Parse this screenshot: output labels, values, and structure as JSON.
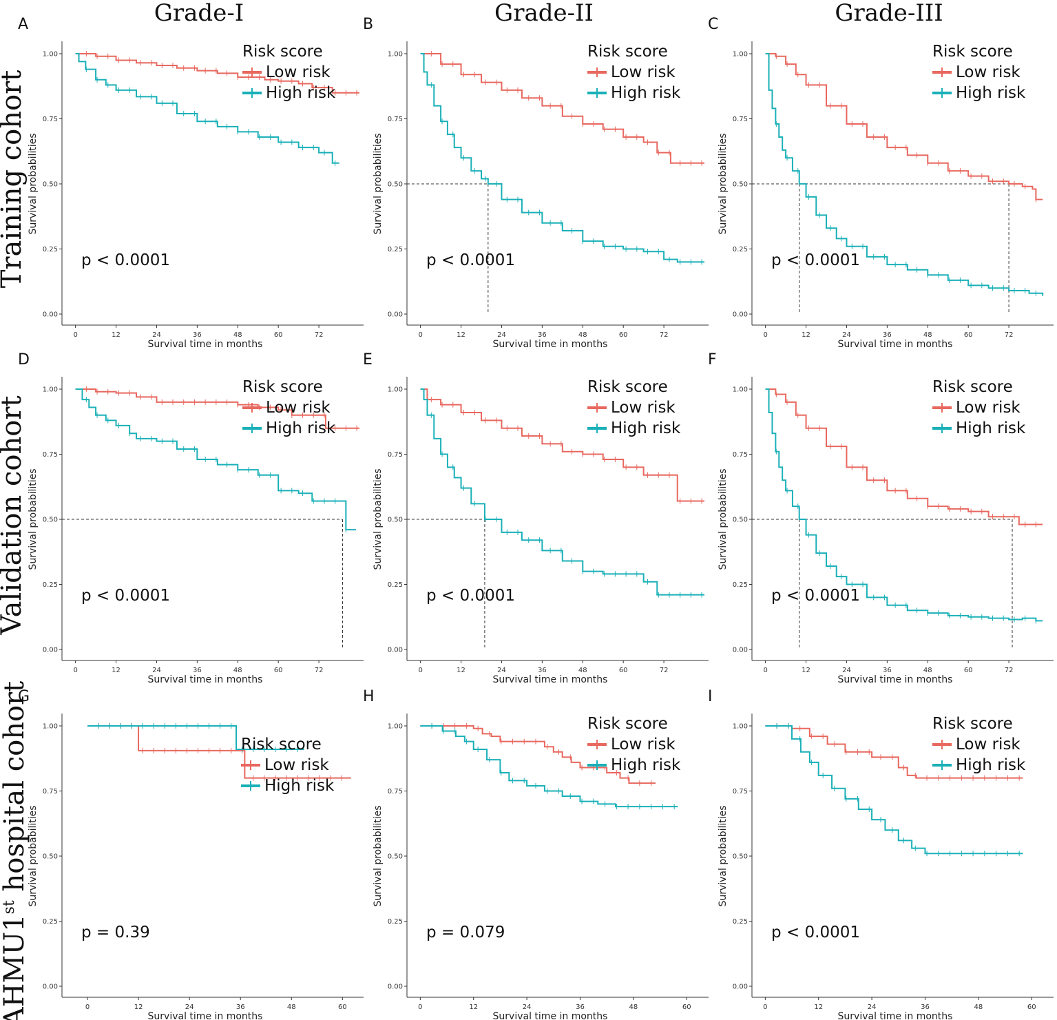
{
  "figure": {
    "column_headers": [
      "Grade-I",
      "Grade-II",
      "Grade-III"
    ],
    "row_headers": [
      {
        "text": "Training cohort"
      },
      {
        "text": "Validation cohort"
      },
      {
        "text": "AHMU1",
        "sup": "st",
        "rest": " hospital cohort"
      }
    ]
  },
  "colors": {
    "low_risk": "#e8685f",
    "high_risk": "#1ab0b8",
    "axis": "#333333",
    "median_line": "#333333"
  },
  "chart_data": [
    {
      "panel": "A",
      "type": "line",
      "subtype": "kaplan-meier",
      "xlabel": "Survival time in months",
      "ylabel": "Survival probabilities",
      "xticks": [
        0,
        12,
        24,
        36,
        48,
        60,
        72
      ],
      "xlim": [
        -4,
        84
      ],
      "yticks": [
        "0.00",
        "0.25",
        "0.50",
        "0.75",
        "1.00"
      ],
      "ylim": [
        0,
        1
      ],
      "pvalue": "p < 0.0001",
      "legend": {
        "title": "Risk score",
        "labels": [
          "Low risk",
          "High risk"
        ],
        "position": "top-right"
      },
      "median_lines": [],
      "series": [
        {
          "name": "Low risk",
          "x": [
            0,
            6,
            12,
            18,
            24,
            30,
            36,
            42,
            48,
            56,
            60,
            66,
            70,
            76,
            84
          ],
          "y": [
            1.0,
            0.99,
            0.975,
            0.965,
            0.955,
            0.945,
            0.935,
            0.925,
            0.91,
            0.9,
            0.895,
            0.885,
            0.87,
            0.85,
            0.85
          ]
        },
        {
          "name": "High risk",
          "x": [
            0,
            1,
            3,
            6,
            9,
            12,
            18,
            24,
            30,
            36,
            42,
            48,
            54,
            60,
            66,
            72,
            76,
            78
          ],
          "y": [
            1.0,
            0.97,
            0.94,
            0.9,
            0.88,
            0.86,
            0.835,
            0.81,
            0.77,
            0.74,
            0.72,
            0.7,
            0.68,
            0.66,
            0.64,
            0.62,
            0.58,
            0.58
          ]
        }
      ]
    },
    {
      "panel": "B",
      "type": "line",
      "subtype": "kaplan-meier",
      "xlabel": "Survival time in months",
      "ylabel": "Survival probabilities",
      "xticks": [
        0,
        12,
        24,
        36,
        48,
        60,
        72
      ],
      "xlim": [
        -4,
        84
      ],
      "yticks": [
        "0.00",
        "0.25",
        "0.50",
        "0.75",
        "1.00"
      ],
      "ylim": [
        0,
        1
      ],
      "pvalue": "p < 0.0001",
      "legend": {
        "title": "Risk score",
        "labels": [
          "Low risk",
          "High risk"
        ],
        "position": "top-right"
      },
      "median_lines": [
        20
      ],
      "series": [
        {
          "name": "Low risk",
          "x": [
            0,
            6,
            12,
            18,
            24,
            30,
            36,
            42,
            48,
            54,
            60,
            66,
            70,
            74,
            84
          ],
          "y": [
            1.0,
            0.96,
            0.92,
            0.89,
            0.86,
            0.83,
            0.8,
            0.76,
            0.73,
            0.71,
            0.68,
            0.66,
            0.62,
            0.58,
            0.58
          ]
        },
        {
          "name": "High risk",
          "x": [
            0,
            1,
            2,
            4,
            6,
            8,
            10,
            12,
            15,
            18,
            20,
            24,
            30,
            36,
            42,
            48,
            54,
            60,
            66,
            72,
            76,
            84
          ],
          "y": [
            1.0,
            0.93,
            0.88,
            0.8,
            0.74,
            0.69,
            0.64,
            0.6,
            0.55,
            0.52,
            0.5,
            0.44,
            0.39,
            0.35,
            0.32,
            0.28,
            0.26,
            0.25,
            0.24,
            0.21,
            0.2,
            0.2
          ]
        }
      ]
    },
    {
      "panel": "C",
      "type": "line",
      "subtype": "kaplan-meier",
      "xlabel": "Survival time in months",
      "ylabel": "Survival probabilities",
      "xticks": [
        0,
        12,
        24,
        36,
        48,
        60,
        72
      ],
      "xlim": [
        -4,
        84
      ],
      "yticks": [
        "0.00",
        "0.25",
        "0.50",
        "0.75",
        "1.00"
      ],
      "ylim": [
        0,
        1
      ],
      "pvalue": "p < 0.0001",
      "legend": {
        "title": "Risk score",
        "labels": [
          "Low risk",
          "High risk"
        ],
        "position": "top-right"
      },
      "median_lines": [
        10,
        72
      ],
      "series": [
        {
          "name": "Low risk",
          "x": [
            0,
            3,
            6,
            9,
            12,
            18,
            24,
            30,
            36,
            42,
            48,
            54,
            60,
            66,
            72,
            76,
            79,
            80,
            82
          ],
          "y": [
            1.0,
            0.99,
            0.96,
            0.92,
            0.88,
            0.8,
            0.73,
            0.68,
            0.64,
            0.61,
            0.58,
            0.55,
            0.53,
            0.51,
            0.5,
            0.49,
            0.48,
            0.44,
            0.44
          ]
        },
        {
          "name": "High risk",
          "x": [
            0,
            1,
            2,
            3,
            4,
            5,
            6,
            8,
            10,
            12,
            15,
            18,
            21,
            24,
            30,
            36,
            42,
            48,
            54,
            60,
            66,
            72,
            78,
            82
          ],
          "y": [
            1.0,
            0.86,
            0.79,
            0.73,
            0.68,
            0.63,
            0.6,
            0.55,
            0.5,
            0.45,
            0.38,
            0.33,
            0.29,
            0.26,
            0.22,
            0.19,
            0.17,
            0.15,
            0.13,
            0.11,
            0.1,
            0.09,
            0.08,
            0.07
          ]
        }
      ]
    },
    {
      "panel": "D",
      "type": "line",
      "subtype": "kaplan-meier",
      "xlabel": "Survival time in months",
      "ylabel": "Survival probabilities",
      "xticks": [
        0,
        12,
        24,
        36,
        48,
        60,
        72
      ],
      "xlim": [
        -4,
        84
      ],
      "yticks": [
        "0.00",
        "0.25",
        "0.50",
        "0.75",
        "1.00"
      ],
      "ylim": [
        0,
        1
      ],
      "pvalue": "p < 0.0001",
      "legend": {
        "title": "Risk score",
        "labels": [
          "Low risk",
          "High risk"
        ],
        "position": "top-right"
      },
      "median_lines": [
        79
      ],
      "series": [
        {
          "name": "Low risk",
          "x": [
            0,
            6,
            12,
            18,
            24,
            48,
            54,
            60,
            64,
            74,
            84
          ],
          "y": [
            1.0,
            0.99,
            0.985,
            0.97,
            0.95,
            0.94,
            0.93,
            0.92,
            0.9,
            0.85,
            0.85
          ]
        },
        {
          "name": "High risk",
          "x": [
            0,
            2,
            4,
            6,
            9,
            12,
            16,
            18,
            24,
            30,
            36,
            42,
            48,
            54,
            60,
            66,
            70,
            79,
            80,
            83
          ],
          "y": [
            1.0,
            0.96,
            0.93,
            0.9,
            0.88,
            0.86,
            0.83,
            0.81,
            0.8,
            0.77,
            0.73,
            0.71,
            0.69,
            0.67,
            0.61,
            0.6,
            0.57,
            0.57,
            0.46,
            0.46
          ]
        }
      ]
    },
    {
      "panel": "E",
      "type": "line",
      "subtype": "kaplan-meier",
      "xlabel": "Survival time in months",
      "ylabel": "Survival probabilities",
      "xticks": [
        0,
        12,
        24,
        36,
        48,
        60,
        72
      ],
      "xlim": [
        -4,
        84
      ],
      "yticks": [
        "0.00",
        "0.25",
        "0.50",
        "0.75",
        "1.00"
      ],
      "ylim": [
        0,
        1
      ],
      "pvalue": "p < 0.0001",
      "legend": {
        "title": "Risk score",
        "labels": [
          "Low risk",
          "High risk"
        ],
        "position": "top-right"
      },
      "median_lines": [
        19
      ],
      "series": [
        {
          "name": "Low risk",
          "x": [
            0,
            2,
            6,
            12,
            18,
            24,
            30,
            36,
            42,
            48,
            54,
            60,
            66,
            76,
            84
          ],
          "y": [
            1.0,
            0.96,
            0.94,
            0.91,
            0.88,
            0.85,
            0.82,
            0.79,
            0.76,
            0.75,
            0.73,
            0.7,
            0.67,
            0.57,
            0.57
          ]
        },
        {
          "name": "High risk",
          "x": [
            0,
            1,
            2,
            4,
            6,
            8,
            10,
            12,
            15,
            19,
            24,
            30,
            36,
            42,
            48,
            54,
            60,
            66,
            70,
            84
          ],
          "y": [
            1.0,
            0.96,
            0.9,
            0.81,
            0.75,
            0.7,
            0.66,
            0.62,
            0.56,
            0.5,
            0.45,
            0.42,
            0.38,
            0.34,
            0.3,
            0.29,
            0.29,
            0.26,
            0.21,
            0.21
          ]
        }
      ]
    },
    {
      "panel": "F",
      "type": "line",
      "subtype": "kaplan-meier",
      "xlabel": "Survival time in months",
      "ylabel": "Survival probabilities",
      "xticks": [
        0,
        12,
        24,
        36,
        48,
        60,
        72
      ],
      "xlim": [
        -4,
        84
      ],
      "yticks": [
        "0.00",
        "0.25",
        "0.50",
        "0.75",
        "1.00"
      ],
      "ylim": [
        0,
        1
      ],
      "pvalue": "p < 0.0001",
      "legend": {
        "title": "Risk score",
        "labels": [
          "Low risk",
          "High risk"
        ],
        "position": "top-right"
      },
      "median_lines": [
        10,
        73
      ],
      "series": [
        {
          "name": "Low risk",
          "x": [
            0,
            3,
            6,
            9,
            12,
            18,
            24,
            30,
            36,
            42,
            48,
            54,
            60,
            66,
            72,
            75,
            82
          ],
          "y": [
            1.0,
            0.98,
            0.95,
            0.9,
            0.85,
            0.78,
            0.7,
            0.65,
            0.61,
            0.58,
            0.55,
            0.54,
            0.53,
            0.51,
            0.51,
            0.48,
            0.48
          ]
        },
        {
          "name": "High risk",
          "x": [
            0,
            1,
            2,
            3,
            4,
            5,
            6,
            8,
            10,
            12,
            15,
            18,
            21,
            24,
            30,
            36,
            42,
            48,
            54,
            60,
            66,
            72,
            76,
            80,
            82
          ],
          "y": [
            1.0,
            0.91,
            0.83,
            0.76,
            0.7,
            0.65,
            0.61,
            0.55,
            0.5,
            0.44,
            0.37,
            0.32,
            0.28,
            0.25,
            0.2,
            0.17,
            0.15,
            0.14,
            0.13,
            0.125,
            0.12,
            0.115,
            0.12,
            0.11,
            0.11
          ]
        }
      ]
    },
    {
      "panel": "G",
      "type": "line",
      "subtype": "kaplan-meier",
      "xlabel": "Survival time in months",
      "ylabel": "Survival probabilities",
      "xticks": [
        0,
        12,
        24,
        36,
        48,
        60
      ],
      "xlim": [
        -6,
        64
      ],
      "yticks": [
        "0.00",
        "0.25",
        "0.50",
        "0.75",
        "1.00"
      ],
      "ylim": [
        0,
        1
      ],
      "pvalue": "p = 0.39",
      "legend": {
        "title": "Risk score",
        "labels": [
          "Low risk",
          "High risk"
        ],
        "position": "center-right"
      },
      "median_lines": [],
      "series": [
        {
          "name": "Low risk",
          "x": [
            0,
            12,
            37,
            62
          ],
          "y": [
            1.0,
            0.905,
            0.8,
            0.8
          ]
        },
        {
          "name": "High risk",
          "x": [
            0,
            35,
            51
          ],
          "y": [
            1.0,
            0.91,
            0.91
          ]
        }
      ]
    },
    {
      "panel": "H",
      "type": "line",
      "subtype": "kaplan-meier",
      "xlabel": "Survival time in months",
      "ylabel": "Survival probabilities",
      "xticks": [
        0,
        12,
        24,
        36,
        48,
        60
      ],
      "xlim": [
        -3,
        64
      ],
      "yticks": [
        "0.00",
        "0.25",
        "0.50",
        "0.75",
        "1.00"
      ],
      "ylim": [
        0,
        1
      ],
      "pvalue": "p = 0.079",
      "legend": {
        "title": "Risk score",
        "labels": [
          "Low risk",
          "High risk"
        ],
        "position": "top-right"
      },
      "median_lines": [],
      "series": [
        {
          "name": "Low risk",
          "x": [
            0,
            12,
            14,
            16,
            18,
            28,
            30,
            32,
            34,
            36,
            42,
            45,
            47,
            53
          ],
          "y": [
            1.0,
            0.99,
            0.97,
            0.96,
            0.94,
            0.92,
            0.9,
            0.88,
            0.86,
            0.84,
            0.82,
            0.8,
            0.78,
            0.78
          ]
        },
        {
          "name": "High risk",
          "x": [
            0,
            5,
            8,
            10,
            12,
            15,
            18,
            20,
            24,
            28,
            32,
            36,
            40,
            44,
            58
          ],
          "y": [
            1.0,
            0.98,
            0.96,
            0.94,
            0.91,
            0.87,
            0.82,
            0.79,
            0.77,
            0.75,
            0.73,
            0.71,
            0.7,
            0.69,
            0.69
          ]
        }
      ]
    },
    {
      "panel": "I",
      "type": "line",
      "subtype": "kaplan-meier",
      "xlabel": "Survival time in months",
      "ylabel": "Survival probabilities",
      "xticks": [
        0,
        12,
        24,
        36,
        48,
        60
      ],
      "xlim": [
        -3,
        64
      ],
      "yticks": [
        "0.00",
        "0.25",
        "0.50",
        "0.75",
        "1.00"
      ],
      "ylim": [
        0,
        1
      ],
      "pvalue": "p < 0.0001",
      "legend": {
        "title": "Risk score",
        "labels": [
          "Low risk",
          "High risk"
        ],
        "position": "top-right"
      },
      "median_lines": [],
      "series": [
        {
          "name": "Low risk",
          "x": [
            0,
            6,
            10,
            14,
            18,
            24,
            30,
            32,
            34,
            58
          ],
          "y": [
            1.0,
            0.99,
            0.96,
            0.93,
            0.9,
            0.88,
            0.84,
            0.81,
            0.8,
            0.8
          ]
        },
        {
          "name": "High risk",
          "x": [
            0,
            6,
            8,
            10,
            12,
            15,
            18,
            21,
            24,
            27,
            30,
            33,
            36,
            58
          ],
          "y": [
            1.0,
            0.95,
            0.9,
            0.86,
            0.81,
            0.76,
            0.72,
            0.68,
            0.64,
            0.6,
            0.56,
            0.53,
            0.51,
            0.51
          ]
        }
      ]
    }
  ]
}
